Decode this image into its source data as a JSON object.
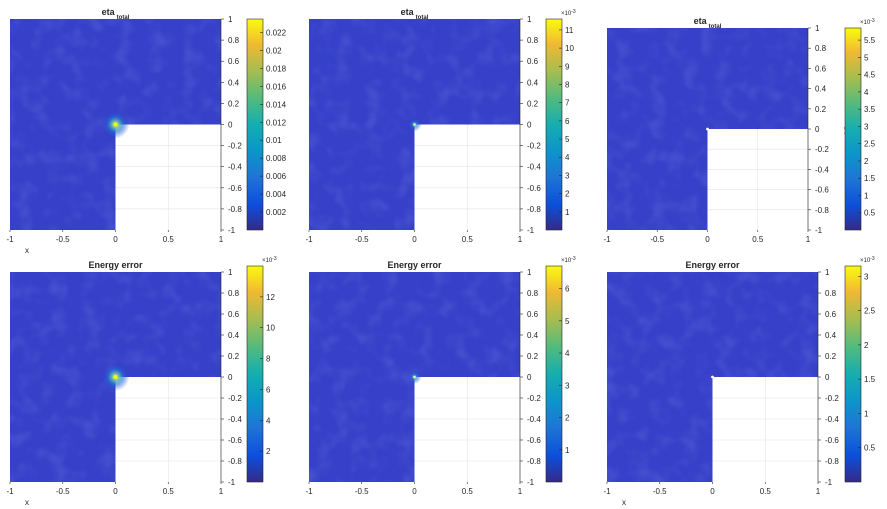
{
  "panels": [
    {
      "title": "eta",
      "title_sub": "total",
      "xlabel": "x",
      "ylabel": "",
      "xlim": [
        -1,
        1
      ],
      "ylim": [
        -1,
        1
      ],
      "x_ticks": [
        "-1",
        "-0.5",
        "0",
        "0.5",
        "1"
      ],
      "y_ticks": [
        "1",
        "0.8",
        "0.6",
        "0.4",
        "0.2",
        "0",
        "-0.2",
        "-0.4",
        "-0.6",
        "-0.8",
        "-1"
      ],
      "colorbar": {
        "min": 0,
        "max": 0.0235,
        "exponent": "",
        "ticks": [
          0.002,
          0.004,
          0.006,
          0.008,
          0.01,
          0.012,
          0.014,
          0.016,
          0.018,
          0.02,
          0.022
        ],
        "labels": [
          "0.002",
          "0.004",
          "0.006",
          "0.008",
          "0.01",
          "0.012",
          "0.014",
          "0.016",
          "0.018",
          "0.02",
          "0.022"
        ]
      },
      "hotspot": "strong"
    },
    {
      "title": "eta",
      "title_sub": "total",
      "xlabel": "",
      "ylabel": "",
      "xlim": [
        -1,
        1
      ],
      "ylim": [
        -1,
        1
      ],
      "x_ticks": [
        "-1",
        "-0.5",
        "0",
        "0.5",
        "1"
      ],
      "y_ticks": [
        "1",
        "0.8",
        "0.6",
        "0.4",
        "0.2",
        "0",
        "-0.2",
        "-0.4",
        "-0.6",
        "-0.8",
        "-1"
      ],
      "colorbar": {
        "min": 0,
        "max": 11.6,
        "exponent": "-3",
        "ticks": [
          1,
          2,
          3,
          4,
          5,
          6,
          7,
          8,
          9,
          10,
          11
        ],
        "labels": [
          "1",
          "2",
          "3",
          "4",
          "5",
          "6",
          "7",
          "8",
          "9",
          "10",
          "11"
        ]
      },
      "hotspot": "weak"
    },
    {
      "title": "eta",
      "title_sub": "total",
      "xlabel": "",
      "ylabel": "y",
      "xlim": [
        -1,
        1
      ],
      "ylim": [
        -1,
        1
      ],
      "x_ticks": [
        "-1",
        "-0.5",
        "0",
        "0.5",
        "1"
      ],
      "y_ticks": [
        "1",
        "0.8",
        "0.6",
        "0.4",
        "0.2",
        "0",
        "-0.2",
        "-0.4",
        "-0.6",
        "-0.8",
        "-1"
      ],
      "colorbar": {
        "min": 0,
        "max": 5.85,
        "exponent": "-3",
        "ticks": [
          0.5,
          1,
          1.5,
          2,
          2.5,
          3,
          3.5,
          4,
          4.5,
          5,
          5.5
        ],
        "labels": [
          "0.5",
          "1",
          "1.5",
          "2",
          "2.5",
          "3",
          "3.5",
          "4",
          "4.5",
          "5",
          "5.5"
        ]
      },
      "hotspot": "dot"
    },
    {
      "title": "Energy error",
      "title_sub": "",
      "xlabel": "x",
      "ylabel": "",
      "xlim": [
        -1,
        1
      ],
      "ylim": [
        -1,
        1
      ],
      "x_ticks": [
        "-1",
        "-0.5",
        "0",
        "0.5",
        "1"
      ],
      "y_ticks": [
        "1",
        "0.8",
        "0.6",
        "0.4",
        "0.2",
        "0",
        "-0.2",
        "-0.4",
        "-0.6",
        "-0.8",
        "-1"
      ],
      "colorbar": {
        "min": 0,
        "max": 14,
        "exponent": "-3",
        "ticks": [
          2,
          4,
          6,
          8,
          10,
          12
        ],
        "labels": [
          "2",
          "4",
          "6",
          "8",
          "10",
          "12"
        ]
      },
      "hotspot": "strong"
    },
    {
      "title": "Energy error",
      "title_sub": "",
      "xlabel": "",
      "ylabel": "",
      "xlim": [
        -1,
        1
      ],
      "ylim": [
        -1,
        1
      ],
      "x_ticks": [
        "-1",
        "-0.5",
        "0",
        "0.5",
        "1"
      ],
      "y_ticks": [
        "1",
        "0.8",
        "0.6",
        "0.4",
        "0.2",
        "0",
        "-0.2",
        "-0.4",
        "-0.6",
        "-0.8",
        "-1"
      ],
      "colorbar": {
        "min": 0,
        "max": 6.7,
        "exponent": "-3",
        "ticks": [
          1,
          2,
          3,
          4,
          5,
          6
        ],
        "labels": [
          "1",
          "2",
          "3",
          "4",
          "5",
          "6"
        ]
      },
      "hotspot": "weak"
    },
    {
      "title": "Energy error",
      "title_sub": "",
      "xlabel": "x",
      "ylabel": "",
      "xlim": [
        -1,
        1
      ],
      "ylim": [
        -1,
        1
      ],
      "x_ticks": [
        "-1",
        "-0.5",
        "0",
        "0.5",
        "1"
      ],
      "y_ticks": [
        "1",
        "0.8",
        "0.6",
        "0.4",
        "0.2",
        "0",
        "-0.2",
        "-0.4",
        "-0.6",
        "-0.8",
        "-1"
      ],
      "colorbar": {
        "min": 0,
        "max": 3.15,
        "exponent": "-3",
        "ticks": [
          0.5,
          1,
          1.5,
          2,
          2.5,
          3
        ],
        "labels": [
          "0.5",
          "1",
          "1.5",
          "2",
          "2.5",
          "3"
        ]
      },
      "hotspot": "dot"
    }
  ],
  "chart_data": [
    {
      "type": "heatmap",
      "title": "eta total",
      "xlabel": "x",
      "ylabel": "",
      "xlim": [
        -1,
        1
      ],
      "ylim": [
        -1,
        1
      ],
      "domain": "L-shaped (lower-right quadrant removed)",
      "colorbar_range": [
        0,
        0.0235
      ],
      "peak_location": [
        0,
        0
      ]
    },
    {
      "type": "heatmap",
      "title": "eta total",
      "xlabel": "",
      "ylabel": "",
      "xlim": [
        -1,
        1
      ],
      "ylim": [
        -1,
        1
      ],
      "domain": "L-shaped (lower-right quadrant removed)",
      "colorbar_range": [
        0,
        0.0116
      ],
      "peak_location": [
        0,
        0
      ]
    },
    {
      "type": "heatmap",
      "title": "eta total",
      "xlabel": "",
      "ylabel": "y",
      "xlim": [
        -1,
        1
      ],
      "ylim": [
        -1,
        1
      ],
      "domain": "L-shaped (lower-right quadrant removed)",
      "colorbar_range": [
        0,
        0.00585
      ],
      "peak_location": [
        0,
        0
      ]
    },
    {
      "type": "heatmap",
      "title": "Energy error",
      "xlabel": "x",
      "ylabel": "",
      "xlim": [
        -1,
        1
      ],
      "ylim": [
        -1,
        1
      ],
      "domain": "L-shaped (lower-right quadrant removed)",
      "colorbar_range": [
        0,
        0.014
      ],
      "peak_location": [
        0,
        0
      ]
    },
    {
      "type": "heatmap",
      "title": "Energy error",
      "xlabel": "",
      "ylabel": "",
      "xlim": [
        -1,
        1
      ],
      "ylim": [
        -1,
        1
      ],
      "domain": "L-shaped (lower-right quadrant removed)",
      "colorbar_range": [
        0,
        0.0067
      ],
      "peak_location": [
        0,
        0
      ]
    },
    {
      "type": "heatmap",
      "title": "Energy error",
      "xlabel": "x",
      "ylabel": "",
      "xlim": [
        -1,
        1
      ],
      "ylim": [
        -1,
        1
      ],
      "domain": "L-shaped (lower-right quadrant removed)",
      "colorbar_range": [
        0,
        0.00315
      ],
      "peak_location": [
        0,
        0
      ]
    }
  ]
}
